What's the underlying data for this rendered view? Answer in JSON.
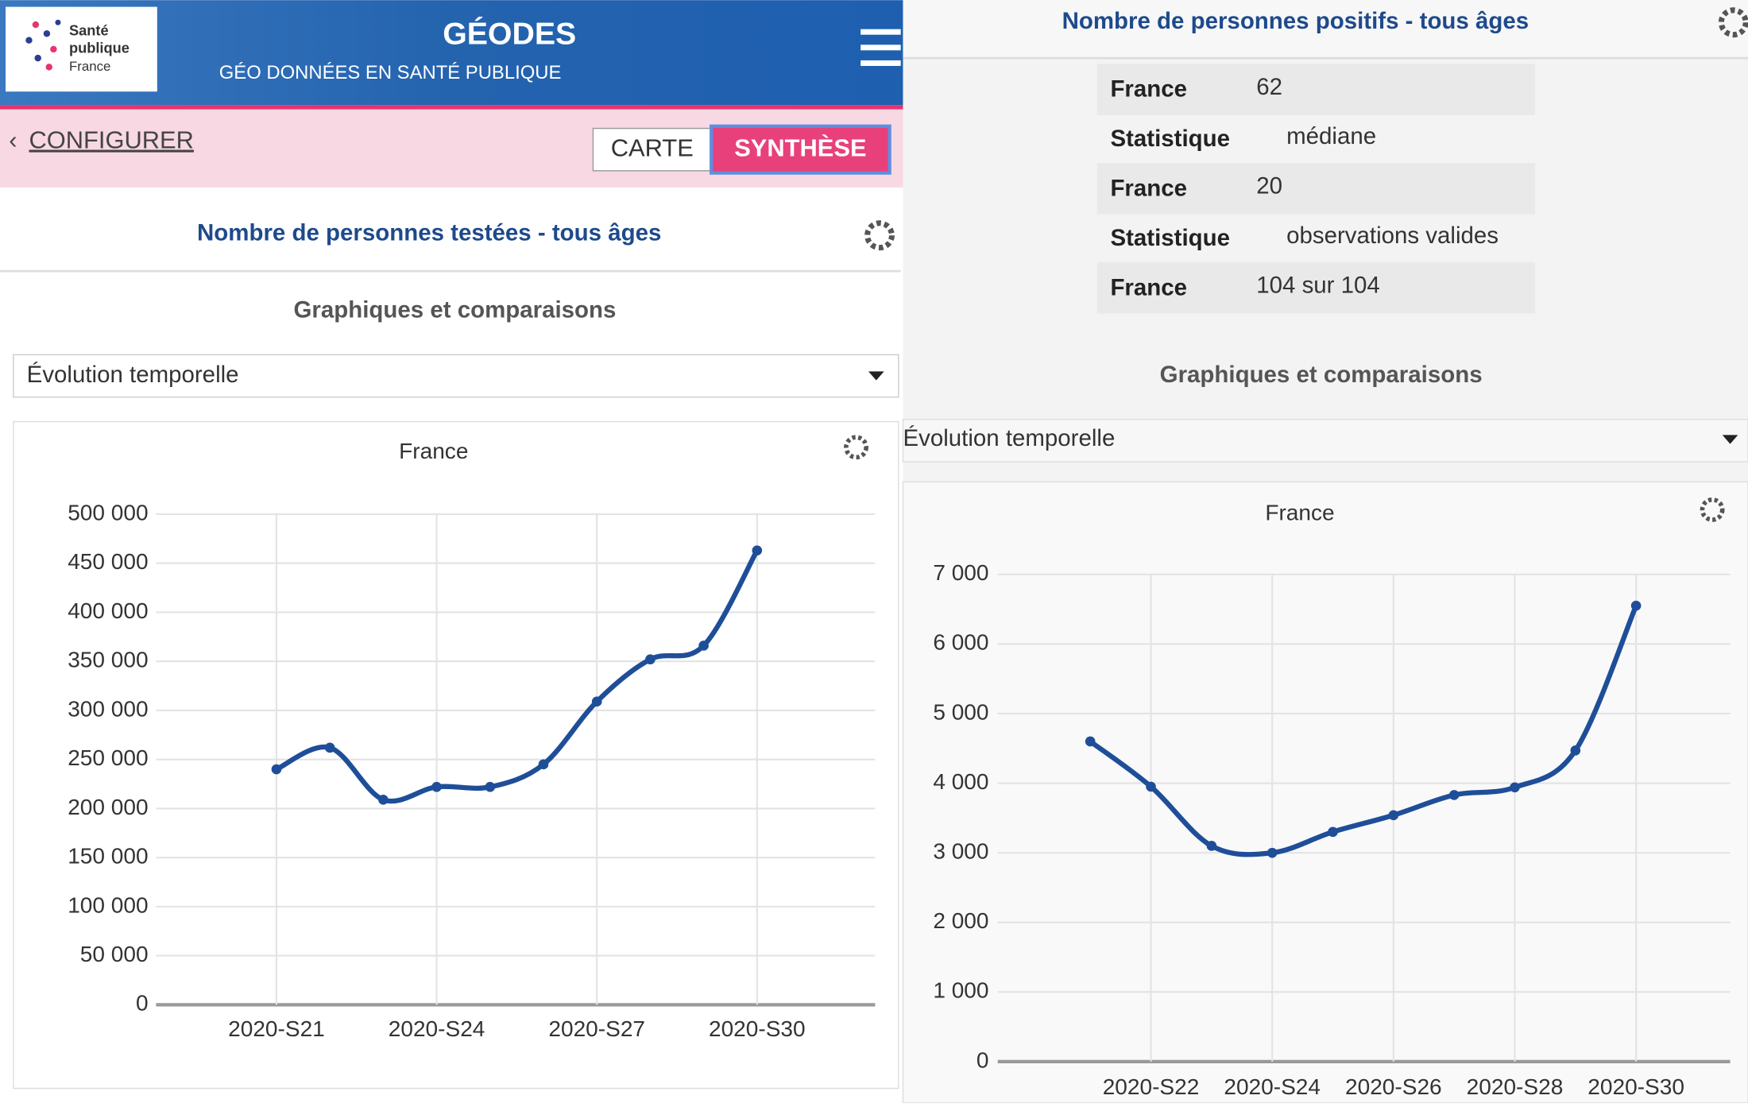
{
  "header": {
    "logo": [
      "Santé",
      "publique",
      "France"
    ],
    "title": "GÉODES",
    "subtitle": "GÉO DONNÉES EN SANTÉ PUBLIQUE"
  },
  "nav": {
    "back": "CONFIGURER",
    "tabs": [
      "CARTE",
      "SYNTHÈSE"
    ]
  },
  "left": {
    "indicator": "Nombre de personnes testées - tous âges",
    "section": "Graphiques et comparaisons",
    "select": "Évolution temporelle"
  },
  "right": {
    "indicator": "Nombre de personnes positifs - tous âges",
    "table": [
      [
        "France",
        "62"
      ],
      [
        "Statistique",
        "médiane"
      ],
      [
        "France",
        "20"
      ],
      [
        "Statistique",
        "observations valides"
      ],
      [
        "France",
        "104 sur 104"
      ]
    ],
    "section": "Graphiques et comparaisons",
    "select": "Évolution temporelle"
  },
  "chart_data": [
    {
      "type": "line",
      "title": "France",
      "color": "#1f4e99",
      "grid": true,
      "categories": [
        "2020-S21",
        null,
        null,
        "2020-S24",
        null,
        null,
        "2020-S27",
        null,
        null,
        "2020-S30"
      ],
      "values": [
        240000,
        262000,
        209000,
        222000,
        222000,
        245000,
        309000,
        352000,
        366000,
        463000
      ],
      "ylim": [
        0,
        500000
      ],
      "yticks": [
        0,
        {
          "value": 50000,
          "label": "50 000"
        },
        {
          "value": 100000,
          "label": "100 000"
        },
        {
          "value": 150000,
          "label": "150 000"
        },
        {
          "value": 200000,
          "label": "200 000"
        },
        {
          "value": 250000,
          "label": "250 000"
        },
        {
          "value": 300000,
          "label": "300 000"
        },
        {
          "value": 350000,
          "label": "350 000"
        },
        {
          "value": 400000,
          "label": "400 000"
        },
        {
          "value": 450000,
          "label": "450 000"
        },
        {
          "value": 500000,
          "label": "500 000"
        }
      ]
    },
    {
      "type": "line",
      "title": "France",
      "color": "#1f4e99",
      "grid": true,
      "categories": [
        null,
        "2020-S22",
        null,
        "2020-S24",
        null,
        "2020-S26",
        null,
        "2020-S28",
        null,
        "2020-S30"
      ],
      "values": [
        4600,
        3950,
        3100,
        3000,
        3300,
        3540,
        3830,
        3940,
        4470,
        6550
      ],
      "ylim": [
        0,
        7000
      ],
      "yticks": [
        0,
        {
          "value": 1000,
          "label": "1 000"
        },
        {
          "value": 2000,
          "label": "2 000"
        },
        {
          "value": 3000,
          "label": "3 000"
        },
        {
          "value": 4000,
          "label": "4 000"
        },
        {
          "value": 5000,
          "label": "5 000"
        },
        {
          "value": 6000,
          "label": "6 000"
        },
        {
          "value": 7000,
          "label": "7 000"
        }
      ]
    }
  ]
}
